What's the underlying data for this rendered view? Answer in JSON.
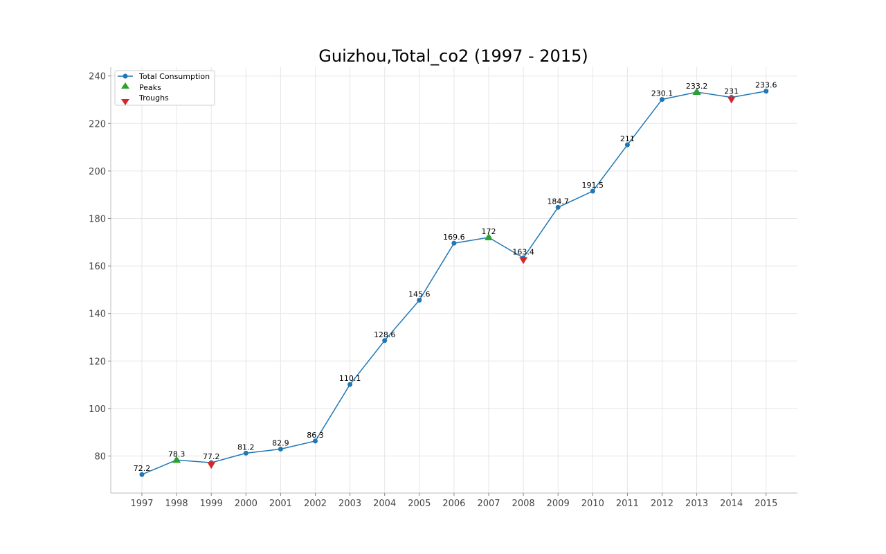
{
  "chart_data": {
    "type": "line",
    "title": "Guizhou,Total_co2 (1997 - 2015)",
    "xlabel": "",
    "ylabel": "",
    "categories": [
      "1997",
      "1998",
      "1999",
      "2000",
      "2001",
      "2002",
      "2003",
      "2004",
      "2005",
      "2006",
      "2007",
      "2008",
      "2009",
      "2010",
      "2011",
      "2012",
      "2013",
      "2014",
      "2015"
    ],
    "series": [
      {
        "name": "Total Consumption",
        "values": [
          72.2,
          78.3,
          77.2,
          81.2,
          82.9,
          86.3,
          110.1,
          128.6,
          145.6,
          169.6,
          172,
          163.4,
          184.7,
          191.5,
          211,
          230.1,
          233.2,
          231,
          233.6
        ],
        "color": "#1f77b4"
      }
    ],
    "data_labels": [
      "72.2",
      "78.3",
      "77.2",
      "81.2",
      "82.9",
      "86.3",
      "110.1",
      "128.6",
      "145.6",
      "169.6",
      "172",
      "163.4",
      "184.7",
      "191.5",
      "211",
      "230.1",
      "233.2",
      "231",
      "233.6"
    ],
    "peaks": {
      "name": "Peaks",
      "years": [
        "1998",
        "2007",
        "2013"
      ],
      "color": "#2ca02c"
    },
    "troughs": {
      "name": "Troughs",
      "years": [
        "1999",
        "2008",
        "2014"
      ],
      "color": "#d62728"
    },
    "y_ticks": [
      80,
      100,
      120,
      140,
      160,
      180,
      200,
      220,
      240
    ],
    "ylim": [
      64.4,
      243.7
    ],
    "grid": true,
    "legend_position": "top-left"
  }
}
